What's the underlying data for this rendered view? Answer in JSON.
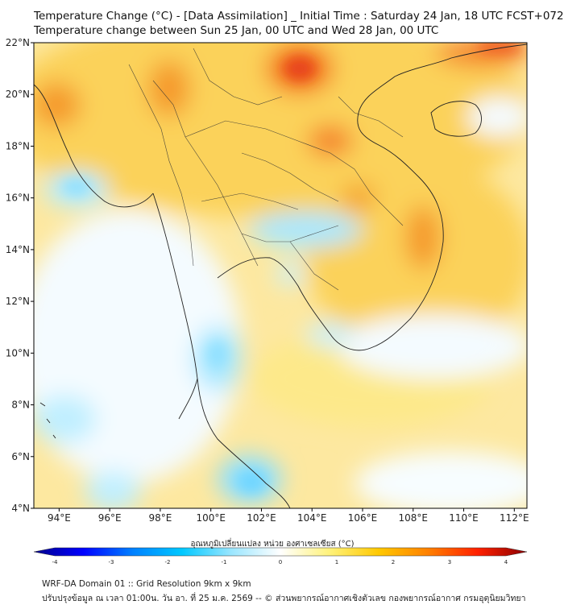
{
  "titles": {
    "line1": "Temperature Change (°C) - [Data Assimilation] _ Initial Time : Saturday 24 Jan, 18 UTC FCST+072",
    "line2": "Temperature change between Sun 25 Jan, 00 UTC and Wed 28 Jan, 00 UTC"
  },
  "map": {
    "lon_range": [
      93,
      112.5
    ],
    "lat_range": [
      4,
      22
    ],
    "lon_ticks": [
      "94°E",
      "96°E",
      "98°E",
      "100°E",
      "102°E",
      "104°E",
      "106°E",
      "108°E",
      "110°E",
      "112°E"
    ],
    "lat_ticks": [
      "22°N",
      "20°N",
      "18°N",
      "16°N",
      "14°N",
      "12°N",
      "10°N",
      "8°N",
      "6°N",
      "4°N"
    ]
  },
  "colorbar": {
    "title": "อุณหภูมิเปลี่ยนแปลง หน่วย องศาเซลเซียส (°C)",
    "ticks": [
      "-4",
      "-3",
      "-2",
      "-1",
      "0",
      "1",
      "2",
      "3",
      "4"
    ],
    "range": [
      -4,
      4
    ],
    "colors": [
      "#00008b",
      "#0000ff",
      "#0080ff",
      "#00c8ff",
      "#9ae6ff",
      "#ffffff",
      "#fff27a",
      "#ffc800",
      "#ff8000",
      "#ff2000",
      "#8b0000"
    ]
  },
  "footer": {
    "line1": "WRF-DA Domain 01 :: Grid Resolution 9km x 9km",
    "line2": "ปรับปรุงข้อมูล ณ เวลา 01:00น. วัน อา. ที่ 25 ม.ค. 2569 -- © ส่วนพยากรณ์อากาศเชิงตัวเลข กองพยากรณ์อากาศ กรมอุตุนิยมวิทยา"
  }
}
